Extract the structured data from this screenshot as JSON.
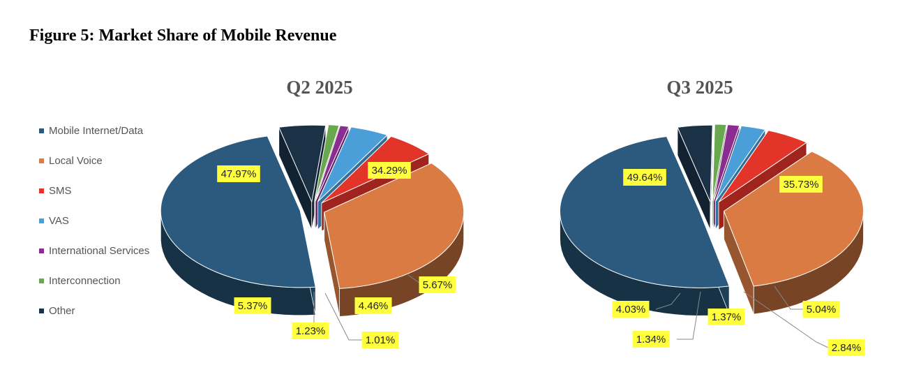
{
  "figure": {
    "title": "Figure 5: Market Share of Mobile Revenue"
  },
  "legend": {
    "items": [
      {
        "label": "Mobile Internet/Data",
        "color": "#2b5a7e"
      },
      {
        "label": "Local Voice",
        "color": "#d97b43"
      },
      {
        "label": "SMS",
        "color": "#e3342a"
      },
      {
        "label": "VAS",
        "color": "#4a9fd9"
      },
      {
        "label": "International Services",
        "color": "#8a2c90"
      },
      {
        "label": "Interconnection",
        "color": "#6aa84f"
      },
      {
        "label": "Other",
        "color": "#1a3146"
      }
    ]
  },
  "colors": {
    "label_background": "#ffff3d",
    "title": "#555555"
  },
  "chart_data": [
    {
      "type": "pie",
      "style": "3d-exploded",
      "title": "Q2 2025",
      "categories": [
        "Mobile Internet/Data",
        "Local Voice",
        "SMS",
        "VAS",
        "International Services",
        "Interconnection",
        "Other"
      ],
      "values": [
        47.97,
        34.29,
        5.67,
        4.46,
        1.01,
        1.23,
        5.37
      ],
      "labels": [
        "47.97%",
        "34.29%",
        "5.67%",
        "4.46%",
        "1.01%",
        "1.23%",
        "5.37%"
      ]
    },
    {
      "type": "pie",
      "style": "3d-exploded",
      "title": "Q3 2025",
      "categories": [
        "Mobile Internet/Data",
        "Local Voice",
        "SMS",
        "VAS",
        "International Services",
        "Interconnection",
        "Other"
      ],
      "values": [
        49.64,
        35.73,
        5.04,
        2.84,
        1.37,
        1.34,
        4.03
      ],
      "labels": [
        "49.64%",
        "35.73%",
        "5.04%",
        "2.84%",
        "1.37%",
        "1.34%",
        "4.03%"
      ]
    }
  ]
}
